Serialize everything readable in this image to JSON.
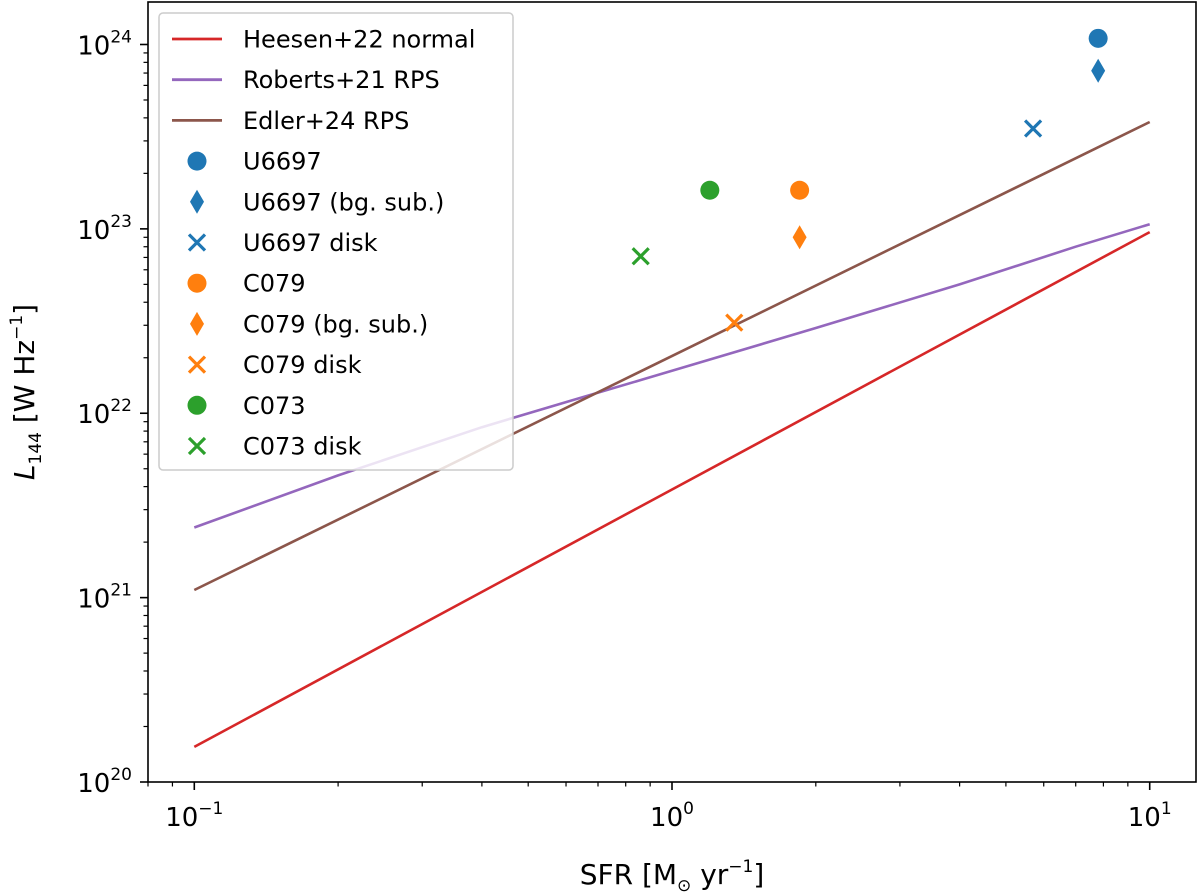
{
  "chart_data": {
    "type": "scatter",
    "xscale": "log",
    "yscale": "log",
    "xlim": [
      0.08,
      12.5
    ],
    "ylim": [
      1e+20,
      1.7e+24
    ],
    "grid": false,
    "legend_position": "top-left",
    "xlabel": {
      "base": "SFR [M",
      "sub": "⊙",
      "unit": " yr",
      "sup": "−1",
      "close": "]"
    },
    "ylabel": {
      "sym": "L",
      "sub": "144",
      "unit": " [W Hz",
      "sup": "−1",
      "close": "]"
    },
    "x_ticks": [
      {
        "value": 0.1,
        "base": "10",
        "exp": "−1"
      },
      {
        "value": 1,
        "base": "10",
        "exp": "0"
      },
      {
        "value": 10,
        "base": "10",
        "exp": "1"
      }
    ],
    "y_ticks": [
      {
        "value": 1e+20,
        "base": "10",
        "exp": "20"
      },
      {
        "value": 1e+21,
        "base": "10",
        "exp": "21"
      },
      {
        "value": 1e+22,
        "base": "10",
        "exp": "22"
      },
      {
        "value": 1e+23,
        "base": "10",
        "exp": "23"
      },
      {
        "value": 1e+24,
        "base": "10",
        "exp": "24"
      }
    ],
    "lines": [
      {
        "name": "Heesen+22 normal",
        "color": "#d62728",
        "x": [
          0.1,
          10
        ],
        "y": [
          1.55e+20,
          9.6e+22
        ]
      },
      {
        "name": "Roberts+21 RPS",
        "color": "#9467bd",
        "x": [
          0.1,
          0.2,
          0.4,
          0.6,
          1,
          2,
          4,
          7,
          10
        ],
        "y": [
          2.4e+21,
          4.6e+21,
          8.4e+21,
          1.15e+22,
          1.7e+22,
          2.9e+22,
          5e+22,
          8e+22,
          1.06e+23
        ]
      },
      {
        "name": "Edler+24 RPS",
        "color": "#8c564b",
        "x": [
          0.1,
          10
        ],
        "y": [
          1.1e+21,
          3.8e+23
        ]
      }
    ],
    "points": [
      {
        "name": "U6697",
        "color": "#1f77b4",
        "marker": "circle",
        "x": 7.8,
        "y": 1.08e+24
      },
      {
        "name": "U6697 (bg. sub.)",
        "color": "#1f77b4",
        "marker": "diamond",
        "x": 7.8,
        "y": 7.2e+23
      },
      {
        "name": "U6697 disk",
        "color": "#1f77b4",
        "marker": "x",
        "x": 5.7,
        "y": 3.5e+23
      },
      {
        "name": "C079",
        "color": "#ff7f0e",
        "marker": "circle",
        "x": 1.85,
        "y": 1.62e+23
      },
      {
        "name": "C079 (bg. sub.)",
        "color": "#ff7f0e",
        "marker": "diamond",
        "x": 1.85,
        "y": 9e+22
      },
      {
        "name": "C079 disk",
        "color": "#ff7f0e",
        "marker": "x",
        "x": 1.35,
        "y": 3.1e+22
      },
      {
        "name": "C073",
        "color": "#2ca02c",
        "marker": "circle",
        "x": 1.2,
        "y": 1.62e+23
      },
      {
        "name": "C073 disk",
        "color": "#2ca02c",
        "marker": "x",
        "x": 0.86,
        "y": 7.1e+22
      }
    ],
    "legend": [
      {
        "label": "Heesen+22 normal",
        "kind": "line",
        "color": "#d62728"
      },
      {
        "label": "Roberts+21 RPS",
        "kind": "line",
        "color": "#9467bd"
      },
      {
        "label": "Edler+24 RPS",
        "kind": "line",
        "color": "#8c564b"
      },
      {
        "label": "U6697",
        "kind": "circle",
        "color": "#1f77b4"
      },
      {
        "label": "U6697 (bg. sub.)",
        "kind": "diamond",
        "color": "#1f77b4"
      },
      {
        "label": "U6697 disk",
        "kind": "x",
        "color": "#1f77b4"
      },
      {
        "label": "C079",
        "kind": "circle",
        "color": "#ff7f0e"
      },
      {
        "label": "C079 (bg. sub.)",
        "kind": "diamond",
        "color": "#ff7f0e"
      },
      {
        "label": "C079 disk",
        "kind": "x",
        "color": "#ff7f0e"
      },
      {
        "label": "C073",
        "kind": "circle",
        "color": "#2ca02c"
      },
      {
        "label": "C073 disk",
        "kind": "x",
        "color": "#2ca02c"
      }
    ]
  }
}
